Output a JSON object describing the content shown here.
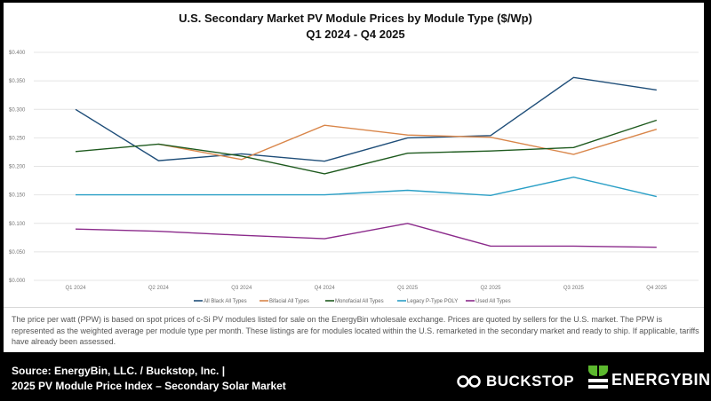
{
  "chart_data": {
    "type": "line",
    "title": "U.S. Secondary Market PV Module Prices by Module Type ($/Wp)",
    "subtitle": "Q1 2024 - Q4 2025",
    "categories": [
      "Q1 2024",
      "Q2 2024",
      "Q3 2024",
      "Q4 2024",
      "Q1 2025",
      "Q2 2025",
      "Q3 2025",
      "Q4 2025"
    ],
    "ylim": [
      0,
      0.4
    ],
    "yticks": [
      "$0.000",
      "$0.050",
      "$0.100",
      "$0.150",
      "$0.200",
      "$0.250",
      "$0.300",
      "$0.350",
      "$0.400"
    ],
    "ytick_values": [
      0,
      0.05,
      0.1,
      0.15,
      0.2,
      0.25,
      0.3,
      0.35,
      0.4
    ],
    "grid": true,
    "legend_placement": "bottom",
    "series": [
      {
        "name": "All Black All Types",
        "color": "#1f4e79",
        "values": [
          0.3,
          0.21,
          0.222,
          0.209,
          0.25,
          0.254,
          0.356,
          0.334
        ]
      },
      {
        "name": "Bifacial All Types",
        "color": "#d9864a",
        "values": [
          null,
          0.239,
          0.212,
          0.272,
          0.255,
          0.251,
          0.221,
          0.265
        ]
      },
      {
        "name": "Monofacial All Types",
        "color": "#1e5a1e",
        "values": [
          0.226,
          0.239,
          0.218,
          0.187,
          0.223,
          0.227,
          0.233,
          0.281
        ]
      },
      {
        "name": "Legacy P-Type POLY",
        "color": "#2a9fc6",
        "values": [
          0.15,
          0.15,
          0.15,
          0.15,
          0.158,
          0.149,
          0.181,
          0.147
        ]
      },
      {
        "name": "Used All Types",
        "color": "#8b2a8b",
        "values": [
          0.09,
          0.086,
          0.079,
          0.073,
          0.1,
          0.06,
          0.06,
          0.058
        ]
      }
    ]
  },
  "note": "The price per watt (PPW) is based on spot prices of c-Si PV modules listed for sale on the EnergyBin wholesale exchange.  Prices are quoted by sellers for the U.S. market.  The PPW is represented as the weighted average per module type per month.  These listings are for modules located within the U.S. remarketed in the secondary market and ready to ship.  If applicable, tariffs have already been assessed.",
  "footer": {
    "source_line1": "Source: EnergyBin, LLC. / Buckstop, Inc. |",
    "source_line2": "2025 PV Module Price Index – Secondary Solar Market",
    "logo_buckstop": "BUCKSTOP",
    "logo_energybin": "ENERGYBIN",
    "energybin_leaf_color": "#5cb82e"
  }
}
